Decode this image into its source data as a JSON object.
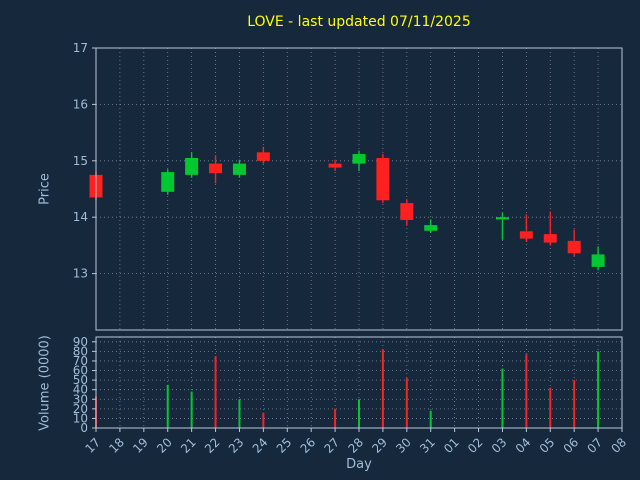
{
  "chart_data": {
    "type": "candlestick",
    "title": "LOVE - last updated 07/11/2025",
    "xlabel": "Day",
    "x_labels": [
      "17",
      "18",
      "19",
      "20",
      "21",
      "22",
      "23",
      "24",
      "25",
      "26",
      "27",
      "28",
      "29",
      "30",
      "31",
      "01",
      "02",
      "03",
      "04",
      "05",
      "06",
      "07",
      "08"
    ],
    "price_axis": {
      "label": "Price",
      "ticks": [
        13,
        14,
        15,
        16,
        17
      ],
      "ylim": [
        12,
        17
      ]
    },
    "volume_axis": {
      "label": "Volume (0000)",
      "ticks": [
        0,
        10,
        20,
        30,
        40,
        50,
        60,
        70,
        80,
        90
      ],
      "ylim": [
        0,
        95
      ]
    },
    "grid": true,
    "legend": "none",
    "candles": [
      {
        "day": "17",
        "open": 14.75,
        "high": 14.8,
        "low": 14.3,
        "close": 14.35,
        "volume": 33
      },
      {
        "day": "20",
        "open": 14.45,
        "high": 14.85,
        "low": 14.4,
        "close": 14.8,
        "volume": 45
      },
      {
        "day": "21",
        "open": 14.75,
        "high": 15.15,
        "low": 14.7,
        "close": 15.05,
        "volume": 38
      },
      {
        "day": "22",
        "open": 14.95,
        "high": 15.1,
        "low": 14.6,
        "close": 14.78,
        "volume": 75
      },
      {
        "day": "23",
        "open": 14.75,
        "high": 15.02,
        "low": 14.7,
        "close": 14.95,
        "volume": 30
      },
      {
        "day": "24",
        "open": 15.15,
        "high": 15.25,
        "low": 14.95,
        "close": 15.0,
        "volume": 16
      },
      {
        "day": "27",
        "open": 14.95,
        "high": 15.02,
        "low": 14.82,
        "close": 14.88,
        "volume": 20
      },
      {
        "day": "28",
        "open": 14.95,
        "high": 15.18,
        "low": 14.82,
        "close": 15.12,
        "volume": 30
      },
      {
        "day": "29",
        "open": 15.05,
        "high": 15.12,
        "low": 14.25,
        "close": 14.3,
        "volume": 82
      },
      {
        "day": "30",
        "open": 14.25,
        "high": 14.32,
        "low": 13.85,
        "close": 13.95,
        "volume": 52
      },
      {
        "day": "31",
        "open": 13.76,
        "high": 13.96,
        "low": 13.72,
        "close": 13.86,
        "volume": 18
      },
      {
        "day": "03",
        "open": 13.96,
        "high": 14.08,
        "low": 13.6,
        "close": 14.0,
        "volume": 62
      },
      {
        "day": "04",
        "open": 13.75,
        "high": 14.05,
        "low": 13.56,
        "close": 13.62,
        "volume": 77
      },
      {
        "day": "05",
        "open": 13.7,
        "high": 14.1,
        "low": 13.5,
        "close": 13.55,
        "volume": 42
      },
      {
        "day": "06",
        "open": 13.58,
        "high": 13.78,
        "low": 13.3,
        "close": 13.36,
        "volume": 50
      },
      {
        "day": "07",
        "open": 13.12,
        "high": 13.48,
        "low": 13.06,
        "close": 13.34,
        "volume": 80
      }
    ],
    "colors": {
      "background": "#16283c",
      "title": "#ffff00",
      "axis_text": "#9fbcd8",
      "spine": "#bac8d8",
      "grid": "#ffffff",
      "up": "#00c832",
      "down": "#ff2020"
    }
  }
}
